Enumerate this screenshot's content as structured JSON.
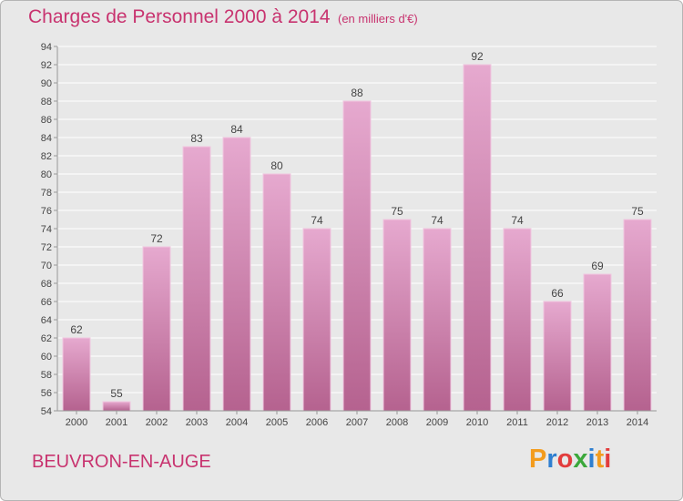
{
  "header": {
    "title": "Charges de Personnel 2000 à 2014",
    "subtitle": "(en milliers d'€)"
  },
  "footer": {
    "commune": "BEUVRON-EN-AUGE",
    "logo_letters": [
      "P",
      "r",
      "o",
      "x",
      "i",
      "t",
      "i"
    ],
    "logo_colors": [
      "#f39c1e",
      "#2f7fd0",
      "#e23c3c",
      "#3ba83b",
      "#2f7fd0",
      "#f39c1e",
      "#e23c3c"
    ]
  },
  "colors": {
    "bar_top": "#e6a9cf",
    "bar_bottom": "#b5628f",
    "bar_border": "#f1c6df",
    "grid": "#ffffff",
    "axis": "#999999"
  },
  "chart_data": {
    "type": "bar",
    "categories": [
      "2000",
      "2001",
      "2002",
      "2003",
      "2004",
      "2005",
      "2006",
      "2007",
      "2008",
      "2009",
      "2010",
      "2011",
      "2012",
      "2013",
      "2014"
    ],
    "values": [
      62,
      55,
      72,
      83,
      84,
      80,
      74,
      88,
      75,
      74,
      92,
      74,
      66,
      69,
      75
    ],
    "title": "Charges de Personnel 2000 à 2014",
    "subtitle": "(en milliers d'€)",
    "xlabel": "",
    "ylabel": "",
    "ylim": [
      54,
      94
    ],
    "yticks": [
      54,
      56,
      58,
      60,
      62,
      64,
      66,
      68,
      70,
      72,
      74,
      76,
      78,
      80,
      82,
      84,
      86,
      88,
      90,
      92,
      94
    ],
    "grid": true,
    "legend": "none"
  }
}
